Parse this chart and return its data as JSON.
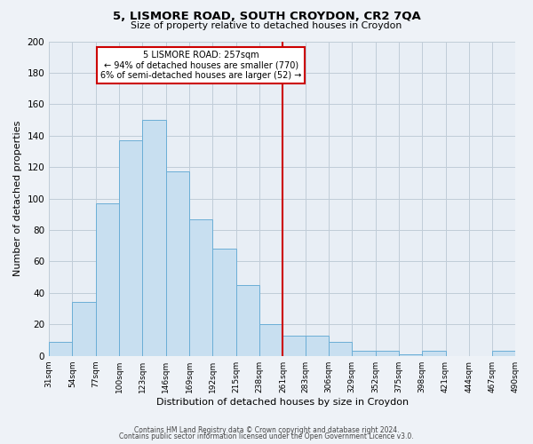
{
  "title": "5, LISMORE ROAD, SOUTH CROYDON, CR2 7QA",
  "subtitle": "Size of property relative to detached houses in Croydon",
  "xlabel": "Distribution of detached houses by size in Croydon",
  "ylabel": "Number of detached properties",
  "bar_heights": [
    9,
    34,
    97,
    137,
    150,
    117,
    87,
    68,
    45,
    20,
    13,
    13,
    9,
    3,
    3,
    1,
    3,
    0,
    0,
    3
  ],
  "bin_labels": [
    "31sqm",
    "54sqm",
    "77sqm",
    "100sqm",
    "123sqm",
    "146sqm",
    "169sqm",
    "192sqm",
    "215sqm",
    "238sqm",
    "261sqm",
    "283sqm",
    "306sqm",
    "329sqm",
    "352sqm",
    "375sqm",
    "398sqm",
    "421sqm",
    "444sqm",
    "467sqm",
    "490sqm"
  ],
  "bar_color": "#c8dff0",
  "bar_edge_color": "#6baed6",
  "vline_x": 261,
  "vline_color": "#cc0000",
  "annotation_title": "5 LISMORE ROAD: 257sqm",
  "annotation_line1": "← 94% of detached houses are smaller (770)",
  "annotation_line2": "6% of semi-detached houses are larger (52) →",
  "annotation_box_edge": "#cc0000",
  "ylim": [
    0,
    200
  ],
  "yticks": [
    0,
    20,
    40,
    60,
    80,
    100,
    120,
    140,
    160,
    180,
    200
  ],
  "bin_edges": [
    31,
    54,
    77,
    100,
    123,
    146,
    169,
    192,
    215,
    238,
    261,
    283,
    306,
    329,
    352,
    375,
    398,
    421,
    444,
    467,
    490
  ],
  "footer1": "Contains HM Land Registry data © Crown copyright and database right 2024.",
  "footer2": "Contains public sector information licensed under the Open Government Licence v3.0.",
  "background_color": "#eef2f7",
  "plot_bg_color": "#e8eef5",
  "grid_color": "#c0ccd8"
}
